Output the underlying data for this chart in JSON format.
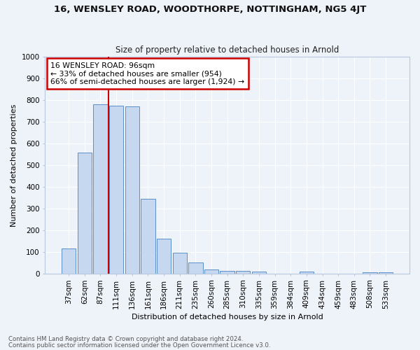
{
  "title1": "16, WENSLEY ROAD, WOODTHORPE, NOTTINGHAM, NG5 4JT",
  "title2": "Size of property relative to detached houses in Arnold",
  "xlabel": "Distribution of detached houses by size in Arnold",
  "ylabel": "Number of detached properties",
  "bar_labels": [
    "37sqm",
    "62sqm",
    "87sqm",
    "111sqm",
    "136sqm",
    "161sqm",
    "186sqm",
    "211sqm",
    "235sqm",
    "260sqm",
    "285sqm",
    "310sqm",
    "335sqm",
    "359sqm",
    "384sqm",
    "409sqm",
    "434sqm",
    "459sqm",
    "483sqm",
    "508sqm",
    "533sqm"
  ],
  "bar_values": [
    115,
    557,
    780,
    775,
    770,
    345,
    160,
    97,
    50,
    20,
    13,
    13,
    8,
    0,
    0,
    10,
    0,
    0,
    0,
    7,
    7
  ],
  "bar_color": "#c5d8f0",
  "bar_edge_color": "#5b8fc9",
  "red_line_x": 2.5,
  "annotation_text": "16 WENSLEY ROAD: 96sqm\n← 33% of detached houses are smaller (954)\n66% of semi-detached houses are larger (1,924) →",
  "annotation_box_color": "#ffffff",
  "annotation_box_edge": "#cc0000",
  "vline_color": "#cc0000",
  "ylim": [
    0,
    1000
  ],
  "yticks": [
    0,
    100,
    200,
    300,
    400,
    500,
    600,
    700,
    800,
    900,
    1000
  ],
  "footer1": "Contains HM Land Registry data © Crown copyright and database right 2024.",
  "footer2": "Contains public sector information licensed under the Open Government Licence v3.0.",
  "bg_color": "#eef2f9",
  "grid_color": "#ffffff",
  "spine_color": "#b8c8de"
}
